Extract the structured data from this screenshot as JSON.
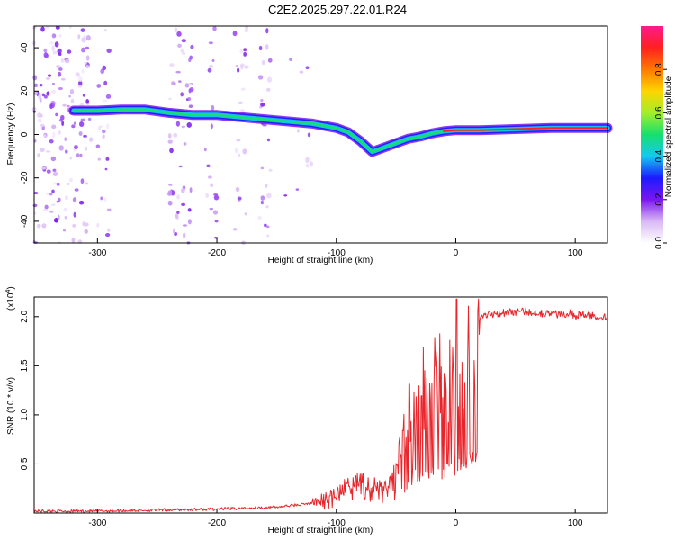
{
  "chart_data": [
    {
      "type": "heatmap",
      "title": "C2E2.2025.297.22.01.R24",
      "xlabel": "Height of straight line (km)",
      "ylabel": "Frequency (Hz)",
      "xlim": [
        -353,
        127
      ],
      "ylim": [
        -50,
        50
      ],
      "xticks": [
        -300,
        -200,
        -100,
        0,
        100
      ],
      "yticks": [
        -40,
        -20,
        0,
        20,
        40
      ],
      "colorbar": {
        "label": "Normalized spectral amplitude",
        "range": [
          0,
          1
        ],
        "ticks": [
          "0.0",
          "0.2",
          "0.4",
          "0.6",
          "0.8"
        ],
        "colormap": [
          "#ffffff",
          "#d9b8f5",
          "#7a16ef",
          "#1b1bff",
          "#14c9f0",
          "#16e06d",
          "#a3ee2a",
          "#ffd400",
          "#ff7a00",
          "#ff2020",
          "#ff1b8d"
        ]
      },
      "ridge": {
        "x": [
          -320,
          -300,
          -280,
          -260,
          -240,
          -220,
          -200,
          -180,
          -160,
          -140,
          -120,
          -100,
          -90,
          -80,
          -70,
          -60,
          -50,
          -40,
          -30,
          -20,
          -10,
          0,
          20,
          50,
          80,
          100,
          127
        ],
        "freq": [
          11,
          11,
          11.5,
          11.5,
          10,
          9,
          9,
          8,
          7,
          6,
          5,
          3,
          1,
          -3,
          -8,
          -6,
          -4,
          -2,
          -1,
          0.5,
          1.5,
          2,
          2,
          2.5,
          3,
          3,
          3
        ]
      }
    },
    {
      "type": "line",
      "xlabel": "Height of straight line (km)",
      "ylabel": "SNR (10 * v/v)",
      "y_multiplier": "x10^4",
      "multiplier_base": "(x10",
      "multiplier_exp": "4",
      "multiplier_close": ")",
      "xlim": [
        -353,
        127
      ],
      "ylim": [
        0,
        2.2
      ],
      "xticks": [
        -300,
        -200,
        -100,
        0,
        100
      ],
      "yticks": [
        0.5,
        1.0,
        1.5,
        2.0
      ],
      "ytick_labels": [
        "0.5",
        "1.0",
        "1.5",
        "2.0"
      ],
      "series": [
        {
          "name": "SNR",
          "color": "#e8252b",
          "x": [
            -353,
            -300,
            -250,
            -200,
            -150,
            -120,
            -110,
            -100,
            -90,
            -80,
            -70,
            -60,
            -55,
            -50,
            -45,
            -40,
            -35,
            -30,
            -25,
            -20,
            -15,
            -10,
            -5,
            0,
            5,
            10,
            15,
            20,
            25,
            30,
            40,
            50,
            60,
            70,
            80,
            90,
            95,
            100,
            105,
            110,
            120,
            127
          ],
          "y": [
            0.02,
            0.02,
            0.03,
            0.04,
            0.06,
            0.1,
            0.15,
            0.2,
            0.28,
            0.35,
            0.3,
            0.25,
            0.3,
            0.45,
            0.7,
            1.0,
            1.2,
            1.25,
            1.3,
            1.35,
            1.3,
            1.4,
            1.45,
            1.55,
            1.7,
            1.85,
            1.95,
            2.0,
            2.02,
            2.03,
            2.04,
            2.05,
            2.05,
            2.04,
            2.03,
            2.02,
            2.05,
            2.0,
            2.03,
            2.01,
            2.0,
            2.0
          ]
        }
      ]
    }
  ]
}
